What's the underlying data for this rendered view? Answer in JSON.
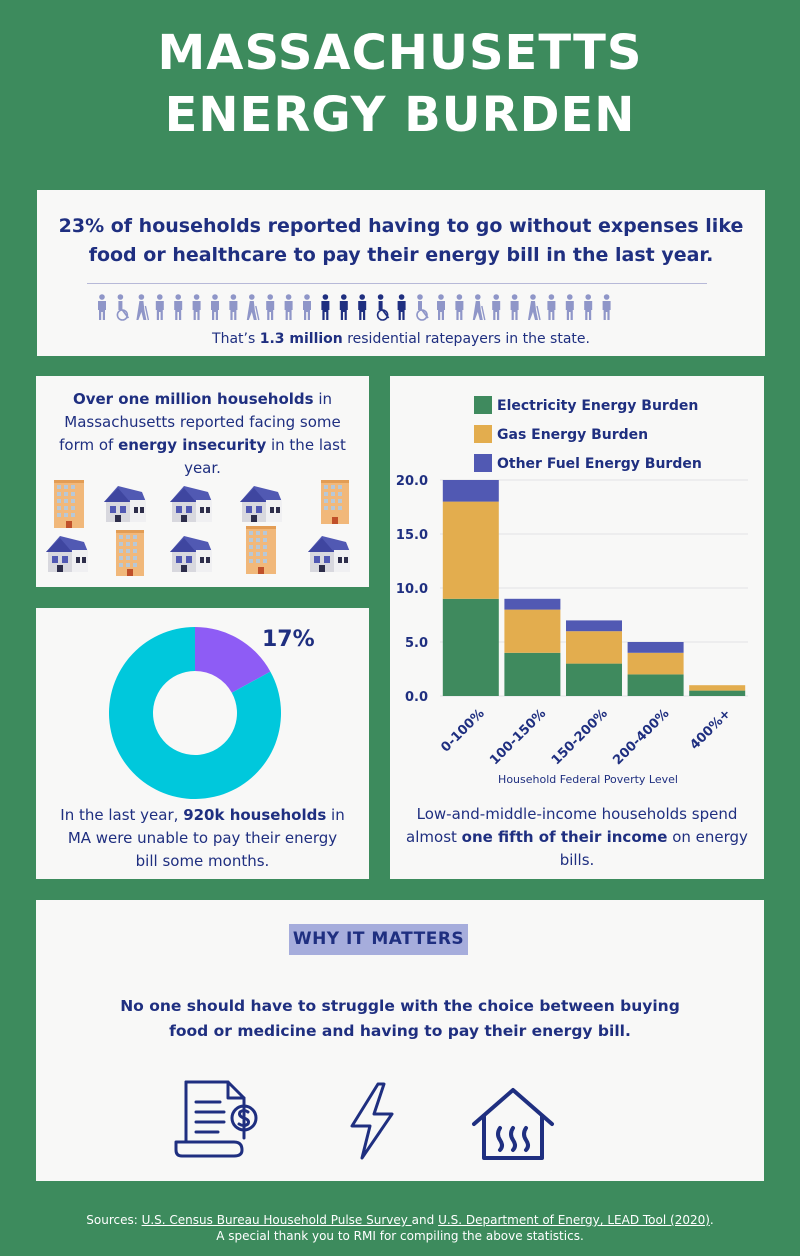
{
  "title": {
    "line1": "MASSACHUSETTS",
    "line2": "ENERGY BURDEN"
  },
  "colors": {
    "background": "#3d8b5d",
    "panel": "#f8f8f7",
    "navy": "#1f2f80",
    "electric": "#3f8a5e",
    "gas": "#e3ad4e",
    "other": "#5159b3",
    "donut_main": "#00c8dc",
    "donut_slice": "#8e5cf5"
  },
  "top_panel": {
    "headline": "23% of households reported having to go without expenses like food or healthcare to pay their energy bill in the last year.",
    "caption_pre": "That’s ",
    "caption_bold": "1.3 million",
    "caption_post": " residential ratepayers in the state."
  },
  "insecurity_panel": {
    "bold1": "Over one million households",
    "text1": " in Massachusetts reported facing some form of ",
    "bold2": "energy insecurity",
    "text2": " in the last year."
  },
  "donut_panel": {
    "percent_label": "17%",
    "percent_value": 17,
    "text1": "In the last year, ",
    "bold1": "920k households",
    "text2": " in MA were unable to pay their energy bill some months."
  },
  "chart_panel": {
    "text1": "Low-and-middle-income households spend almost ",
    "bold1": "one fifth of their income",
    "text2": " on energy bills."
  },
  "chart_data": {
    "type": "bar",
    "stacked": true,
    "categories": [
      "0-100%",
      "100-150%",
      "150-200%",
      "200-400%",
      "400%+"
    ],
    "series": [
      {
        "name": "Electricity Energy Burden",
        "values": [
          9,
          4,
          3,
          2,
          0.5
        ]
      },
      {
        "name": "Gas Energy Burden",
        "values": [
          9,
          4,
          3,
          2,
          0.5
        ]
      },
      {
        "name": "Other Fuel Energy Burden",
        "values": [
          2,
          1,
          1,
          1,
          0
        ]
      }
    ],
    "yticks": [
      "0.0",
      "5.0",
      "10.0",
      "15.0",
      "20.0"
    ],
    "ylim": [
      0,
      20
    ],
    "xlabel": "Household Federal Poverty Level",
    "ylabel": "",
    "legend": "top"
  },
  "why": {
    "badge": "WHY IT MATTERS",
    "text": "No one should have to struggle with the choice between buying food or medicine and having to pay their energy bill."
  },
  "footer": {
    "prefix": "Sources: ",
    "source1": "U.S. Census Bureau Household Pulse Survey ",
    "and": "and ",
    "source2": "U.S. Department of Energy, LEAD Tool (2020)",
    "period": ".",
    "line2": "A special thank you to RMI for compiling the above statistics."
  }
}
